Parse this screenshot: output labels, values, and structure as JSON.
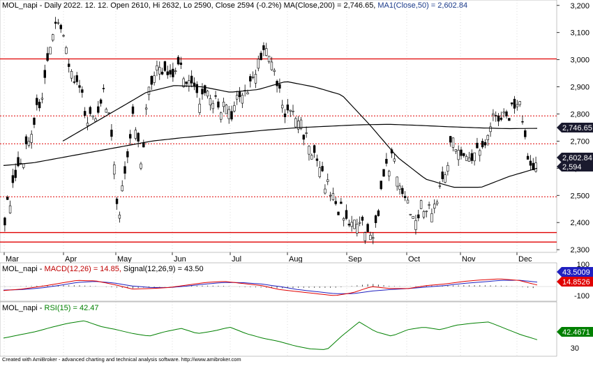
{
  "header": {
    "price_prefix": "MOL_napi - Daily 2022. 12. 12. Open 2610, Hi 2632, Lo 2590, Close 2594 (-0.2%) ",
    "ma200_text": "MA(Close,200) = 2,746.65,",
    "ma50_text": "MA1(Close,50) = 2,602.84"
  },
  "macd_header": {
    "prefix": "MOL_napi - ",
    "macd_text": "MACD(12,26) = 14.85,",
    "signal_text": "Signal(12,26,9) = 43.50"
  },
  "rsi_header": {
    "prefix": "MOL_napi - ",
    "rsi_text": "RSI(15) = 42.47"
  },
  "footer": "Created with AmiBroker - advanced charting and technical analysis software. http://www.amibroker.com",
  "colors": {
    "price_bar": "#000000",
    "support_line": "#e00000",
    "ma200": "#000000",
    "ma50": "#000000",
    "macd_line": "#e00000",
    "signal_line": "#2020c0",
    "rsi_line": "#008000",
    "grid": "#c8c8c8",
    "last_price_badge": "#1a1a2e",
    "signal_badge": "#2020c0",
    "macd_badge": "#e00000",
    "rsi_badge": "#008000"
  },
  "chart_data": [
    {
      "type": "candlestick",
      "x_labels": [
        "Mar",
        "Apr",
        "May",
        "Jun",
        "Jul",
        "Aug",
        "Sep",
        "Oct",
        "Nov",
        "Dec"
      ],
      "y_ticks": [
        2300,
        2400,
        2500,
        2600,
        2700,
        2800,
        2900,
        3000,
        3100,
        3200
      ],
      "y_tick_labels": [
        "2,300",
        "2,400",
        "2,500",
        "2,600",
        "2,700",
        "2,800",
        "2,900",
        "3,000",
        "3,100",
        "3,200"
      ],
      "ylim": [
        2290,
        3220
      ],
      "grid": "vertical dotted at month starts",
      "horizontal_levels": [
        {
          "value": 3003,
          "style": "solid"
        },
        {
          "value": 2793,
          "style": "dotted"
        },
        {
          "value": 2690,
          "style": "dotted"
        },
        {
          "value": 2495,
          "style": "dotted"
        },
        {
          "value": 2363,
          "style": "solid"
        },
        {
          "value": 2328,
          "style": "solid"
        }
      ],
      "close_series": [
        2420,
        2520,
        2600,
        2690,
        2790,
        2880,
        3020,
        3170,
        3050,
        2930,
        2870,
        2780,
        2800,
        2880,
        2740,
        2390,
        2640,
        2800,
        2620,
        2900,
        2960,
        2950,
        2950,
        2990,
        2930,
        2880,
        2850,
        2860,
        2840,
        2820,
        2780,
        2890,
        2880,
        2960,
        3040,
        3000,
        2900,
        2790,
        2810,
        2760,
        2700,
        2620,
        2560,
        2510,
        2450,
        2430,
        2380,
        2390,
        2335,
        2400,
        2570,
        2640,
        2560,
        2470,
        2430,
        2460,
        2450,
        2480,
        2600,
        2700,
        2680,
        2620,
        2650,
        2680,
        2780,
        2800,
        2780,
        2830,
        2850,
        2610,
        2594
      ],
      "ma200": [
        2610,
        2620,
        2640,
        2660,
        2680,
        2700,
        2712,
        2722,
        2732,
        2742,
        2750,
        2755,
        2760,
        2762,
        2758,
        2753,
        2749,
        2746,
        2747
      ],
      "ma50": [
        2700,
        2760,
        2820,
        2880,
        2905,
        2900,
        2880,
        2890,
        2920,
        2900,
        2870,
        2760,
        2640,
        2560,
        2530,
        2530,
        2570,
        2600
      ],
      "last_close": "2,594",
      "ma200_value": "2,746.65",
      "ma50_value": "2,602.84"
    },
    {
      "type": "line",
      "name": "MACD",
      "y_ticks": [
        -100,
        100
      ],
      "y_tick_labels": [
        "-100",
        "100"
      ],
      "ylim": [
        -130,
        130
      ],
      "macd": [
        -40,
        -25,
        0,
        30,
        60,
        55,
        20,
        -25,
        -20,
        -10,
        15,
        40,
        50,
        30,
        10,
        -30,
        -50,
        -70,
        -90,
        -60,
        0,
        -20,
        -20,
        10,
        25,
        50,
        65,
        75,
        60,
        15
      ],
      "signal": [
        -35,
        -30,
        -15,
        10,
        40,
        50,
        35,
        5,
        -10,
        -10,
        5,
        25,
        40,
        38,
        25,
        0,
        -30,
        -50,
        -70,
        -70,
        -45,
        -30,
        -20,
        -5,
        10,
        30,
        45,
        60,
        62,
        43.5
      ],
      "signal_value": "43.5009",
      "macd_value": "14.8526"
    },
    {
      "type": "line",
      "name": "RSI",
      "y_ticks": [
        30
      ],
      "y_tick_labels": [
        "30"
      ],
      "ylim": [
        20,
        85
      ],
      "rsi": [
        45,
        50,
        55,
        62,
        68,
        72,
        63,
        58,
        52,
        48,
        55,
        60,
        52,
        56,
        62,
        52,
        45,
        40,
        33,
        28,
        27,
        50,
        70,
        55,
        48,
        58,
        62,
        58,
        65,
        68,
        70,
        60,
        50,
        42.47
      ],
      "rsi_value": "42.4671"
    }
  ]
}
